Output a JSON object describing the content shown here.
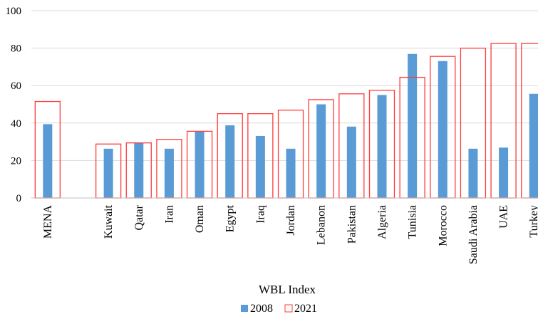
{
  "chart_data": {
    "type": "bar",
    "title": "",
    "xlabel": "WBL Index",
    "ylabel": "",
    "ylim": [
      0,
      100
    ],
    "yticks": [
      0,
      20,
      40,
      60,
      80,
      100
    ],
    "grid": true,
    "legend_position": "bottom",
    "categories": [
      "MENA",
      "",
      "Kuwait",
      "Qatar",
      "Iran",
      "Oman",
      "Egypt",
      "Iraq",
      "Jordan",
      "Lebanon",
      "Pakistan",
      "Algeria",
      "Tunisia",
      "Morocco",
      "Saudi Arabia",
      "UAE",
      "Turkey"
    ],
    "series": [
      {
        "name": "2008",
        "style": "filled",
        "color": "#5b9bd5",
        "values": [
          39.4,
          null,
          26.3,
          29.4,
          26.3,
          35.6,
          38.8,
          33.1,
          26.3,
          50.0,
          38.1,
          55.0,
          76.9,
          73.1,
          26.3,
          26.9,
          55.6
        ]
      },
      {
        "name": "2021",
        "style": "outline",
        "color": "#ff3b3b",
        "values": [
          51.5,
          null,
          28.8,
          29.4,
          31.3,
          35.6,
          45.0,
          45.0,
          46.9,
          52.5,
          55.6,
          57.5,
          64.4,
          75.6,
          80.0,
          82.5,
          82.5
        ]
      }
    ]
  }
}
